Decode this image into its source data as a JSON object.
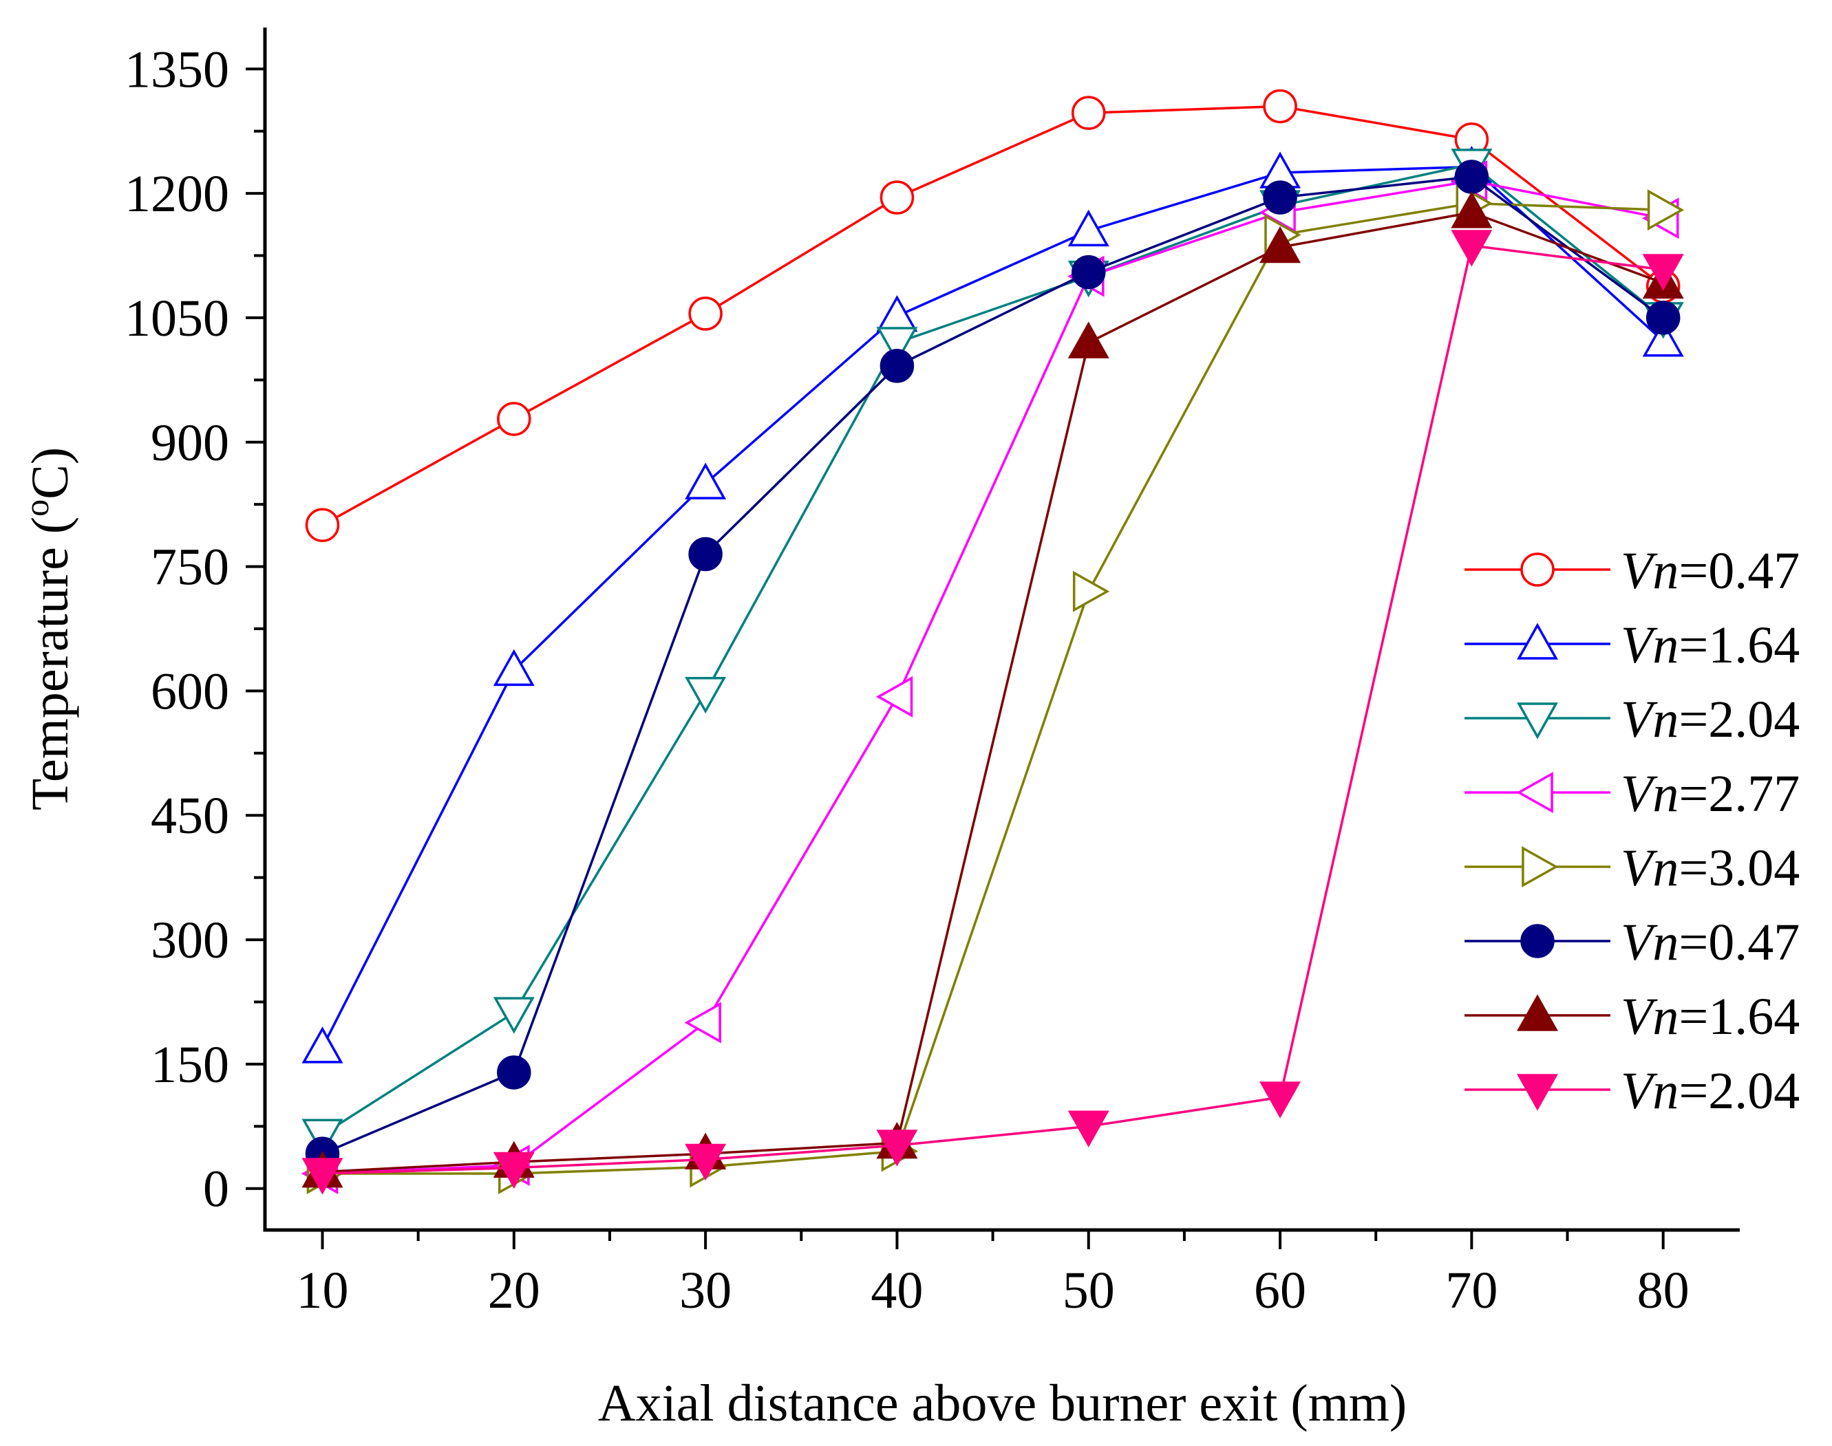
{
  "chart_data": {
    "type": "line",
    "title": "",
    "xlabel": "Axial distance above burner exit (mm)",
    "ylabel_main": "Temperature (",
    "ylabel_sup": "o",
    "ylabel_tail": "C)",
    "x": [
      10,
      20,
      30,
      40,
      50,
      60,
      70,
      80
    ],
    "xlim": [
      7,
      84
    ],
    "ylim": [
      -50,
      1400
    ],
    "xticks": [
      10,
      20,
      30,
      40,
      50,
      60,
      70,
      80
    ],
    "yticks": [
      0,
      150,
      300,
      450,
      600,
      750,
      900,
      1050,
      1200,
      1350
    ],
    "ymajor_step": 150,
    "legend_position": "right",
    "series": [
      {
        "var": "Vn",
        "label": "=0.47",
        "color": "#ff0000",
        "marker": "circle",
        "filled": false,
        "values": [
          800,
          928,
          1055,
          1195,
          1297,
          1305,
          1265,
          1088
        ]
      },
      {
        "var": "Vn",
        "label": "=1.64",
        "color": "#0000ff",
        "marker": "triangle-up",
        "filled": false,
        "values": [
          170,
          625,
          850,
          1052,
          1155,
          1225,
          1232,
          1022
        ]
      },
      {
        "var": "Vn",
        "label": "=2.04",
        "color": "#008080",
        "marker": "triangle-down",
        "filled": false,
        "values": [
          65,
          212,
          598,
          1020,
          1100,
          1185,
          1235,
          1050
        ]
      },
      {
        "var": "Vn",
        "label": "=2.77",
        "color": "#ff00ff",
        "marker": "triangle-left",
        "filled": false,
        "values": [
          18,
          28,
          200,
          593,
          1100,
          1177,
          1215,
          1170
        ]
      },
      {
        "var": "Vn",
        "label": "=3.04",
        "color": "#808000",
        "marker": "triangle-right",
        "filled": false,
        "values": [
          18,
          18,
          26,
          45,
          720,
          1150,
          1188,
          1180
        ]
      },
      {
        "var": "Vn",
        "label": "=0.47",
        "color": "#000080",
        "marker": "circle",
        "filled": true,
        "values": [
          42,
          140,
          765,
          992,
          1105,
          1195,
          1220,
          1050
        ]
      },
      {
        "var": "Vn",
        "label": "=1.64",
        "color": "#800000",
        "marker": "triangle-up",
        "filled": true,
        "values": [
          20,
          32,
          42,
          55,
          1020,
          1135,
          1177,
          1092
        ]
      },
      {
        "var": "Vn",
        "label": "=2.04",
        "color": "#ff0080",
        "marker": "triangle-down",
        "filled": true,
        "values": [
          18,
          25,
          35,
          52,
          75,
          110,
          1137,
          1108
        ]
      }
    ]
  }
}
